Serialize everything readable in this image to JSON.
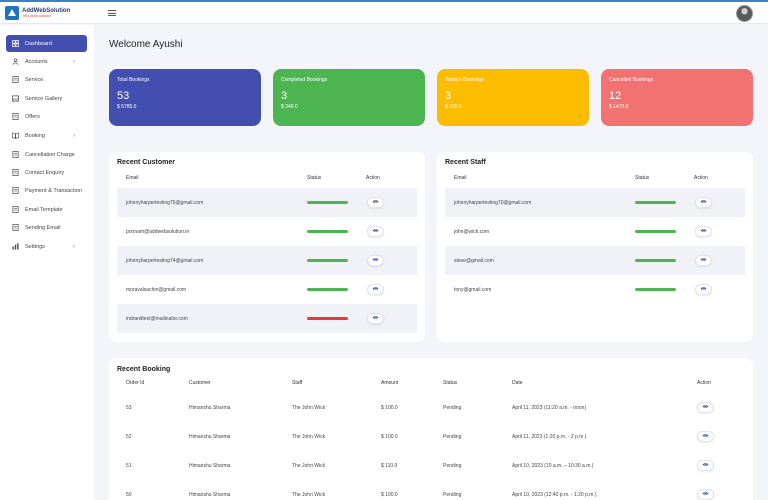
{
  "brand": {
    "name": "AddWebSolution",
    "tagline": "\"let's build solution\"",
    "color": "#1e73be"
  },
  "sidebar": {
    "items": [
      {
        "label": "Dashboard",
        "icon": "grid-icon",
        "active": true,
        "chevron": false
      },
      {
        "label": "Accounts",
        "icon": "users-icon",
        "active": false,
        "chevron": true
      },
      {
        "label": "Service",
        "icon": "document-icon",
        "active": false,
        "chevron": false
      },
      {
        "label": "Service Gallery",
        "icon": "gallery-icon",
        "active": false,
        "chevron": false
      },
      {
        "label": "Offers",
        "icon": "document-icon",
        "active": false,
        "chevron": false
      },
      {
        "label": "Booking",
        "icon": "book-icon",
        "active": false,
        "chevron": true
      },
      {
        "label": "Cancellation Charge",
        "icon": "document-icon",
        "active": false,
        "chevron": false
      },
      {
        "label": "Contact Enquiry",
        "icon": "document-icon",
        "active": false,
        "chevron": false
      },
      {
        "label": "Payment & Transaction",
        "icon": "document-icon",
        "active": false,
        "chevron": false
      },
      {
        "label": "Email Template",
        "icon": "document-icon",
        "active": false,
        "chevron": false
      },
      {
        "label": "Sending Email",
        "icon": "document-icon",
        "active": false,
        "chevron": false
      },
      {
        "label": "Settings",
        "icon": "bar-chart-icon",
        "active": false,
        "chevron": true
      }
    ],
    "active_color": "#434fb0"
  },
  "welcome": "Welcome Ayushi",
  "stats": [
    {
      "label": "Total Bookings",
      "count": "53",
      "amount": "$ 5785.0",
      "color": "#434fb0"
    },
    {
      "label": "Completed Bookings",
      "count": "3",
      "amount": "$ 349.0",
      "color": "#4cb552"
    },
    {
      "label": "Today's Bookings",
      "count": "3",
      "amount": "$ 330.0",
      "color": "#fcbc00"
    },
    {
      "label": "Cancelled Bookings",
      "count": "12",
      "amount": "$ 1470.0",
      "color": "#f27272"
    }
  ],
  "recent_customer": {
    "title": "Recent Customer",
    "headers": {
      "email": "Email",
      "status": "Status",
      "action": "Action"
    },
    "rows": [
      {
        "email": "johnnyharpertesting75@gmail.com",
        "status": "active"
      },
      {
        "email": "poonam@addwebsolution.in",
        "status": "active"
      },
      {
        "email": "johnnyharpertesting74@gmail.com",
        "status": "active"
      },
      {
        "email": "moravalsachin@gmail.com",
        "status": "active"
      },
      {
        "email": "indranittest@mailinator.com",
        "status": "inactive"
      }
    ]
  },
  "recent_staff": {
    "title": "Recent Staff",
    "headers": {
      "email": "Email",
      "status": "Status",
      "action": "Action"
    },
    "rows": [
      {
        "email": "johnnyharpertesting70@gmail.com",
        "status": "active"
      },
      {
        "email": "john@wick.com",
        "status": "active"
      },
      {
        "email": "steve@gmail.com",
        "status": "active"
      },
      {
        "email": "tony@gmail.com",
        "status": "active"
      }
    ]
  },
  "status_colors": {
    "active": "#4cb552",
    "inactive": "#e53935"
  },
  "recent_booking": {
    "title": "Recent Booking",
    "headers": {
      "order_id": "Order Id",
      "customer": "Customer",
      "staff": "Staff",
      "amount": "Amount",
      "status": "Status",
      "date": "Date",
      "action": "Action"
    },
    "rows": [
      {
        "order_id": "53",
        "customer": "Himanshu Sharma",
        "staff": "The John Wick",
        "amount": "$ 100.0",
        "status": "Pending",
        "date": "April 11, 2023 (11:20 a.m. - noon)"
      },
      {
        "order_id": "52",
        "customer": "Himanshu Sharma",
        "staff": "The John Wick",
        "amount": "$ 100.0",
        "status": "Pending",
        "date": "April 11, 2023 (1:20 p.m. - 2 p.m.)"
      },
      {
        "order_id": "51",
        "customer": "Himanshu Sharma",
        "staff": "The John Wick",
        "amount": "$ 110.0",
        "status": "Pending",
        "date": "April 10, 2023 (10 a.m. – 10:30 a.m.)"
      },
      {
        "order_id": "50",
        "customer": "Himanshu Sharma",
        "staff": "The John Wick",
        "amount": "$ 100.0",
        "status": "Pending",
        "date": "April 10, 2023 (12:40 p.m. - 1:20 p.m.)"
      }
    ]
  }
}
